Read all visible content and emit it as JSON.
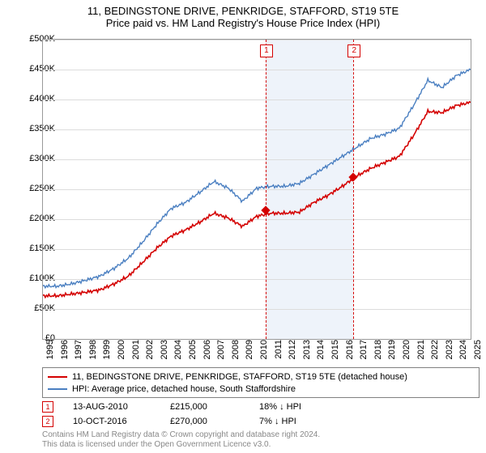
{
  "title": {
    "line1": "11, BEDINGSTONE DRIVE, PENKRIDGE, STAFFORD, ST19 5TE",
    "line2": "Price paid vs. HM Land Registry's House Price Index (HPI)"
  },
  "chart": {
    "type": "line",
    "background_color": "#ffffff",
    "border_color": "#9a9a9a",
    "grid_color": "#dcdcdc",
    "shade_color": "#eef3fa",
    "x_years": [
      1995,
      1996,
      1997,
      1998,
      1999,
      2000,
      2001,
      2002,
      2003,
      2004,
      2005,
      2006,
      2007,
      2008,
      2009,
      2010,
      2011,
      2012,
      2013,
      2014,
      2015,
      2016,
      2017,
      2018,
      2019,
      2020,
      2021,
      2022,
      2023,
      2024,
      2025
    ],
    "xlim": [
      1995,
      2025
    ],
    "ylim": [
      0,
      500000
    ],
    "ytick_step": 50000,
    "yticks_labels": [
      "£0",
      "£50K",
      "£100K",
      "£150K",
      "£200K",
      "£250K",
      "£300K",
      "£350K",
      "£400K",
      "£450K",
      "£500K"
    ],
    "series": [
      {
        "name": "property",
        "color": "#d40000",
        "line_width": 1.6,
        "values": [
          72000,
          72000,
          75000,
          78000,
          82000,
          92000,
          105000,
          128000,
          152000,
          172000,
          182000,
          195000,
          210000,
          202000,
          188000,
          205000,
          210000,
          210000,
          212000,
          228000,
          240000,
          255000,
          272000,
          285000,
          295000,
          305000,
          340000,
          380000,
          378000,
          390000,
          395000
        ]
      },
      {
        "name": "hpi",
        "color": "#4a7fc1",
        "line_width": 1.4,
        "values": [
          88000,
          88000,
          92000,
          98000,
          105000,
          118000,
          135000,
          162000,
          192000,
          218000,
          228000,
          245000,
          263000,
          252000,
          230000,
          252000,
          255000,
          255000,
          260000,
          275000,
          290000,
          305000,
          320000,
          335000,
          342000,
          352000,
          390000,
          432000,
          420000,
          440000,
          450000
        ]
      }
    ],
    "events": [
      {
        "n": "1",
        "year": 2010.62,
        "price": 215000,
        "color": "#d40000"
      },
      {
        "n": "2",
        "year": 2016.78,
        "price": 270000,
        "color": "#d40000"
      }
    ]
  },
  "legend": {
    "items": [
      {
        "color": "#d40000",
        "label": "11, BEDINGSTONE DRIVE, PENKRIDGE, STAFFORD, ST19 5TE (detached house)"
      },
      {
        "color": "#4a7fc1",
        "label": "HPI: Average price, detached house, South Staffordshire"
      }
    ]
  },
  "events_table": {
    "rows": [
      {
        "n": "1",
        "color": "#d40000",
        "date": "13-AUG-2010",
        "price": "£215,000",
        "delta": "18% ↓ HPI"
      },
      {
        "n": "2",
        "color": "#d40000",
        "date": "10-OCT-2016",
        "price": "£270,000",
        "delta": "7% ↓ HPI"
      }
    ]
  },
  "footer": {
    "line1": "Contains HM Land Registry data © Crown copyright and database right 2024.",
    "line2": "This data is licensed under the Open Government Licence v3.0."
  }
}
